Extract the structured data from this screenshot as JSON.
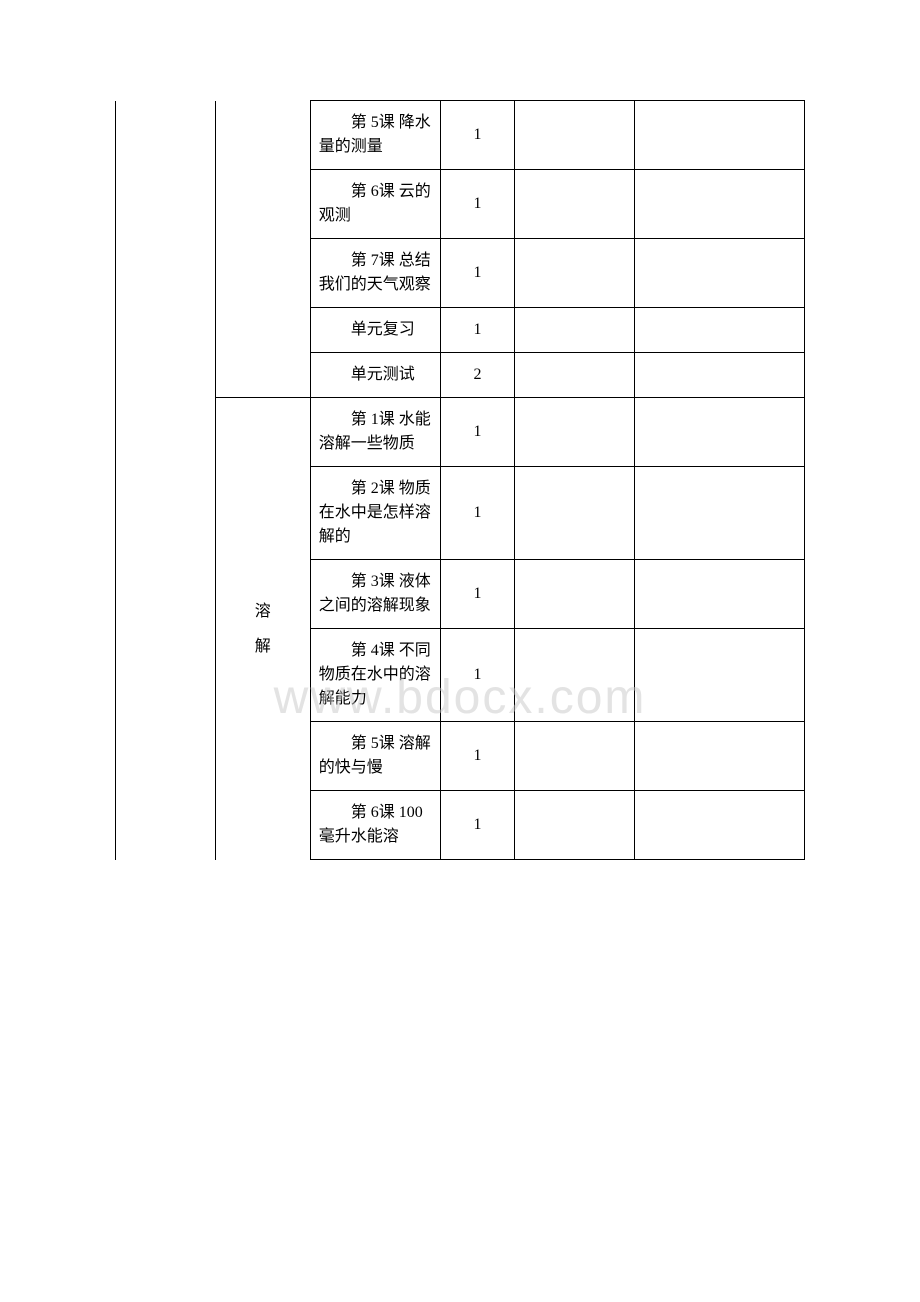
{
  "watermark": "www.bdocx.com",
  "rows": [
    {
      "lesson": "第 5课 降水量的测量",
      "hours": "1",
      "unit": "",
      "showUnit": false,
      "col1Top": false,
      "col1Bottom": false,
      "col2Top": false,
      "col2Bottom": false
    },
    {
      "lesson": "第 6课 云的观测",
      "hours": "1",
      "unit": "",
      "showUnit": false,
      "col1Top": false,
      "col1Bottom": false,
      "col2Top": false,
      "col2Bottom": false
    },
    {
      "lesson": "第 7课 总结我们的天气观察",
      "hours": "1",
      "unit": "",
      "showUnit": false,
      "col1Top": false,
      "col1Bottom": false,
      "col2Top": false,
      "col2Bottom": false
    },
    {
      "lesson": "单元复习",
      "hours": "1",
      "unit": "",
      "showUnit": false,
      "col1Top": false,
      "col1Bottom": false,
      "col2Top": false,
      "col2Bottom": false
    },
    {
      "lesson": "单元测试",
      "hours": "2",
      "unit": "",
      "showUnit": false,
      "col1Top": false,
      "col1Bottom": false,
      "col2Top": false,
      "col2Bottom": true
    },
    {
      "lesson": "第 1课 水能溶解一些物质",
      "hours": "1",
      "unit": "溶",
      "unit2": "解",
      "showUnit": true,
      "unitRowspan": 6,
      "col1Top": false,
      "col1Bottom": false
    },
    {
      "lesson": "第 2课 物质在水中是怎样溶解的",
      "hours": "1",
      "unit": "",
      "showUnit": false,
      "col1Top": false,
      "col1Bottom": false
    },
    {
      "lesson": "第 3课 液体之间的溶解现象",
      "hours": "1",
      "unit": "",
      "showUnit": false,
      "col1Top": false,
      "col1Bottom": false
    },
    {
      "lesson": "第 4课 不同物质在水中的溶解能力",
      "hours": "1",
      "unit": "",
      "showUnit": false,
      "col1Top": false,
      "col1Bottom": false
    },
    {
      "lesson": "第 5课 溶解的快与慢",
      "hours": "1",
      "unit": "",
      "showUnit": false,
      "col1Top": false,
      "col1Bottom": false
    },
    {
      "lesson": "第 6课 100 毫升水能溶",
      "hours": "1",
      "unit": "",
      "showUnit": false,
      "col1Top": false,
      "col1Bottom": false,
      "lastRow": true
    }
  ]
}
